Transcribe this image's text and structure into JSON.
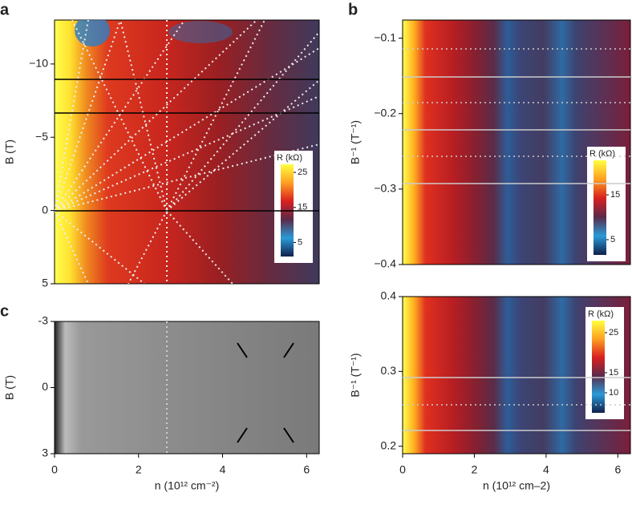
{
  "chart_data": [
    {
      "type": "heatmap",
      "panel_label": "a",
      "ylabel": "B (T)",
      "xlim": [
        0,
        6.3
      ],
      "ylim": [
        -13,
        5
      ],
      "yticks": [
        {
          "value": -10,
          "label": "−10"
        },
        {
          "value": -5,
          "label": "−5"
        },
        0,
        5
      ],
      "colorbar": {
        "title": "R (kΩ)",
        "lim": [
          1,
          27.3
        ],
        "ticks": [
          25,
          15,
          5
        ]
      }
    },
    {
      "type": "heatmap",
      "panel_label": "b",
      "ylabel": "B⁻¹ (T⁻¹)",
      "xlim": [
        0,
        6.35
      ],
      "ylim": [
        -0.076,
        -0.4
      ],
      "yticks": [
        {
          "value": -0.1,
          "label": "−0.1"
        },
        {
          "value": -0.2,
          "label": "−0.2"
        },
        {
          "value": -0.3,
          "label": "−0.3"
        },
        {
          "value": -0.4,
          "label": "−0.4"
        }
      ],
      "colorbar": {
        "title": "R (kΩ)",
        "lim": [
          1.6,
          22.7
        ],
        "ticks": [
          15,
          5
        ]
      }
    },
    {
      "type": "heatmap",
      "ylabel": "B⁻¹ (T⁻¹)",
      "xlabel": "n (10¹² cm–2)",
      "xlim": [
        0,
        6.35
      ],
      "ylim": [
        0.4,
        0.19
      ],
      "xticks": [
        0,
        2,
        4,
        6
      ],
      "yticks": [
        0.4,
        0.3,
        0.2
      ],
      "colorbar": {
        "title": "R (kΩ)",
        "lim": [
          5,
          28
        ],
        "ticks": [
          25,
          15,
          10
        ]
      }
    },
    {
      "type": "heatmap",
      "panel_label": "c",
      "ylabel": "B (T)",
      "xlabel": "n (10¹² cm⁻²)",
      "xlim": [
        0,
        6.3
      ],
      "ylim": [
        -3,
        3
      ],
      "xticks": [
        0,
        2,
        4,
        6
      ],
      "yticks": [
        {
          "value": -3,
          "label": "-3"
        },
        0,
        3
      ]
    }
  ]
}
